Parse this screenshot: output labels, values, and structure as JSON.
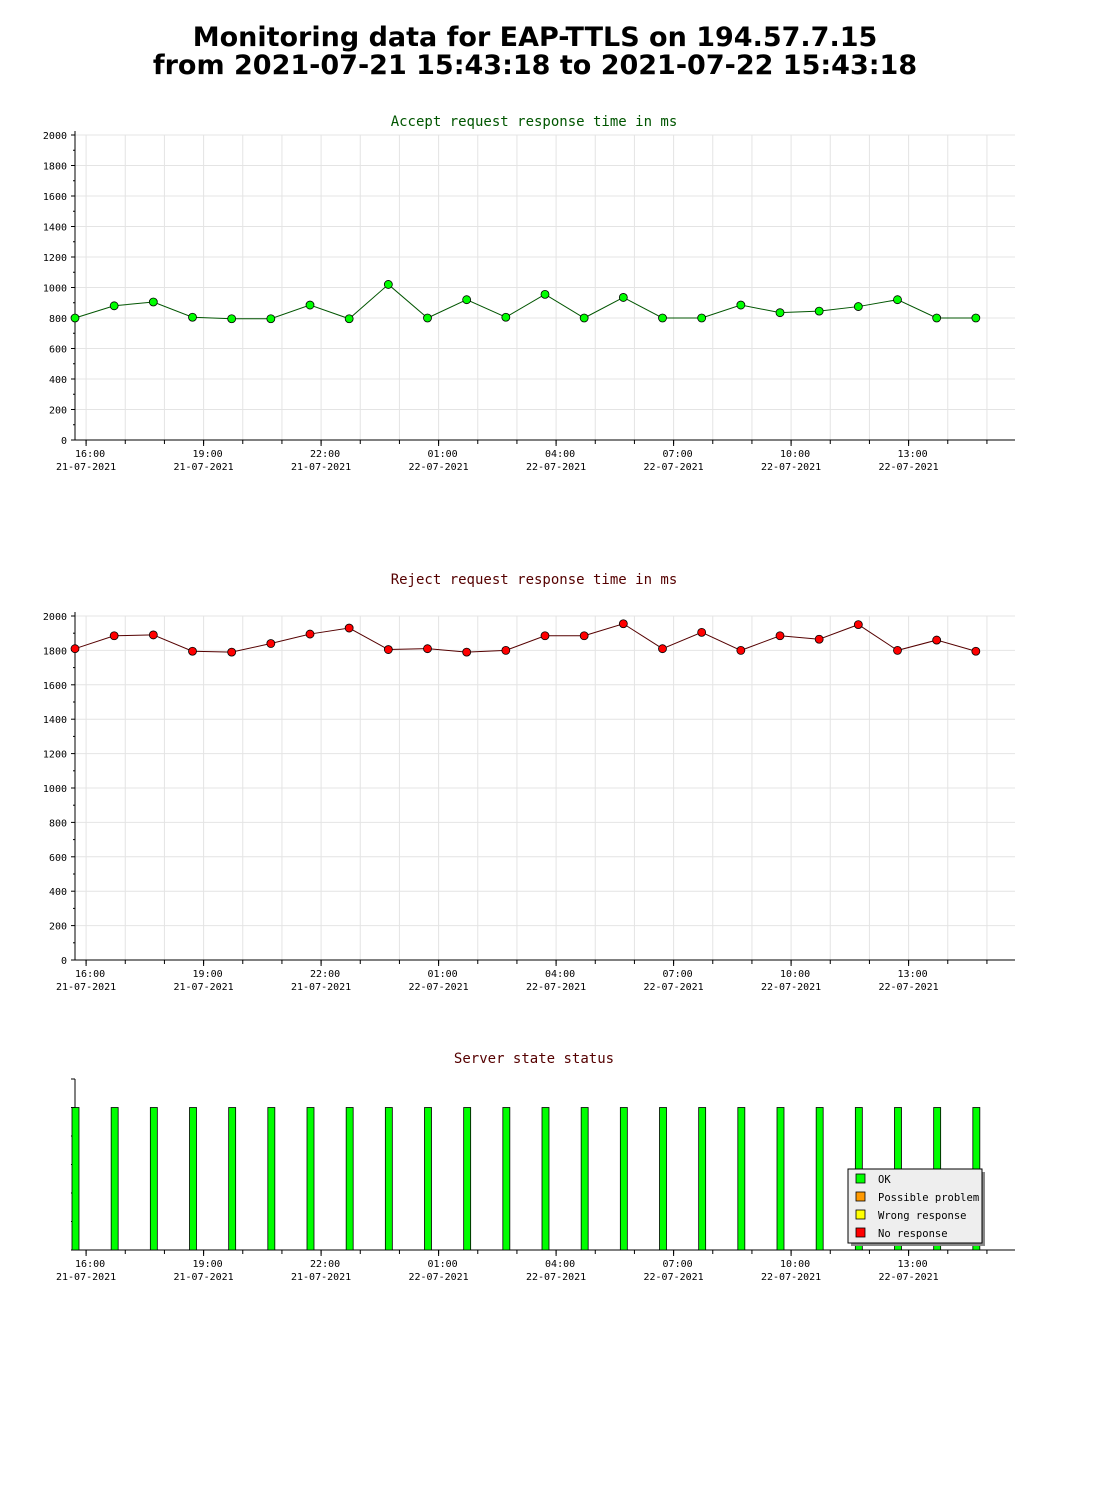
{
  "page": {
    "title_line1": "Monitoring data for EAP-TTLS on 194.57.7.15",
    "title_line2": "from 2021-07-21 15:43:18 to 2021-07-22 15:43:18"
  },
  "time_ticks": [
    {
      "time": "16:00",
      "date": "21-07-2021",
      "hour": 16
    },
    {
      "time": "19:00",
      "date": "21-07-2021",
      "hour": 19
    },
    {
      "time": "22:00",
      "date": "21-07-2021",
      "hour": 22
    },
    {
      "time": "01:00",
      "date": "22-07-2021",
      "hour": 25
    },
    {
      "time": "04:00",
      "date": "22-07-2021",
      "hour": 28
    },
    {
      "time": "07:00",
      "date": "22-07-2021",
      "hour": 31
    },
    {
      "time": "10:00",
      "date": "22-07-2021",
      "hour": 34
    },
    {
      "time": "13:00",
      "date": "22-07-2021",
      "hour": 37
    }
  ],
  "chart_data": [
    {
      "type": "line",
      "title": "Accept request response time in ms",
      "title_color": "#005500",
      "line_color": "#005500",
      "marker_color": "#00ff00",
      "ylim": [
        0,
        2000
      ],
      "yticks": [
        0,
        200,
        400,
        600,
        800,
        1000,
        1200,
        1400,
        1600,
        1800,
        2000
      ],
      "grid": true,
      "x": [
        "2021-07-21 15:43",
        "2021-07-21 16:43",
        "2021-07-21 17:43",
        "2021-07-21 18:43",
        "2021-07-21 19:43",
        "2021-07-21 20:43",
        "2021-07-21 21:43",
        "2021-07-21 22:43",
        "2021-07-21 23:43",
        "2021-07-22 00:43",
        "2021-07-22 01:43",
        "2021-07-22 02:43",
        "2021-07-22 03:43",
        "2021-07-22 04:43",
        "2021-07-22 05:43",
        "2021-07-22 06:43",
        "2021-07-22 07:43",
        "2021-07-22 08:43",
        "2021-07-22 09:43",
        "2021-07-22 10:43",
        "2021-07-22 11:43",
        "2021-07-22 12:43",
        "2021-07-22 13:43",
        "2021-07-22 14:43"
      ],
      "y": [
        800,
        880,
        905,
        805,
        795,
        795,
        885,
        795,
        1020,
        800,
        920,
        805,
        955,
        800,
        935,
        800,
        800,
        885,
        835,
        845,
        875,
        920,
        800,
        800
      ]
    },
    {
      "type": "line",
      "title": "Reject request response time in ms",
      "title_color": "#550000",
      "line_color": "#550000",
      "marker_color": "#ff0000",
      "ylim": [
        0,
        2000
      ],
      "yticks": [
        0,
        200,
        400,
        600,
        800,
        1000,
        1200,
        1400,
        1600,
        1800,
        2000
      ],
      "grid": true,
      "x": [
        "2021-07-21 15:43",
        "2021-07-21 16:43",
        "2021-07-21 17:43",
        "2021-07-21 18:43",
        "2021-07-21 19:43",
        "2021-07-21 20:43",
        "2021-07-21 21:43",
        "2021-07-21 22:43",
        "2021-07-21 23:43",
        "2021-07-22 00:43",
        "2021-07-22 01:43",
        "2021-07-22 02:43",
        "2021-07-22 03:43",
        "2021-07-22 04:43",
        "2021-07-22 05:43",
        "2021-07-22 06:43",
        "2021-07-22 07:43",
        "2021-07-22 08:43",
        "2021-07-22 09:43",
        "2021-07-22 10:43",
        "2021-07-22 11:43",
        "2021-07-22 12:43",
        "2021-07-22 13:43",
        "2021-07-22 14:43"
      ],
      "y": [
        1810,
        1885,
        1890,
        1795,
        1790,
        1840,
        1895,
        1930,
        1805,
        1810,
        1790,
        1800,
        1885,
        1885,
        1955,
        1810,
        1905,
        1800,
        1885,
        1865,
        1950,
        1800,
        1860,
        1795
      ]
    },
    {
      "type": "bar",
      "title": "Server state status",
      "title_color": "#550000",
      "grid": false,
      "legend_placement": "bottom-right",
      "legend": [
        {
          "label": "OK",
          "color": "#00ff00"
        },
        {
          "label": "Possible problem",
          "color": "#ff9900"
        },
        {
          "label": "Wrong response",
          "color": "#ffff00"
        },
        {
          "label": "No response",
          "color": "#ff0000"
        }
      ],
      "x": [
        "2021-07-21 15:43",
        "2021-07-21 16:43",
        "2021-07-21 17:43",
        "2021-07-21 18:43",
        "2021-07-21 19:43",
        "2021-07-21 20:43",
        "2021-07-21 21:43",
        "2021-07-21 22:43",
        "2021-07-21 23:43",
        "2021-07-22 00:43",
        "2021-07-22 01:43",
        "2021-07-22 02:43",
        "2021-07-22 03:43",
        "2021-07-22 04:43",
        "2021-07-22 05:43",
        "2021-07-22 06:43",
        "2021-07-22 07:43",
        "2021-07-22 08:43",
        "2021-07-22 09:43",
        "2021-07-22 10:43",
        "2021-07-22 11:43",
        "2021-07-22 12:43",
        "2021-07-22 13:43",
        "2021-07-22 14:43"
      ],
      "status": [
        "OK",
        "OK",
        "OK",
        "OK",
        "OK",
        "OK",
        "OK",
        "OK",
        "OK",
        "OK",
        "OK",
        "OK",
        "OK",
        "OK",
        "OK",
        "OK",
        "OK",
        "OK",
        "OK",
        "OK",
        "OK",
        "OK",
        "OK",
        "OK"
      ]
    }
  ]
}
